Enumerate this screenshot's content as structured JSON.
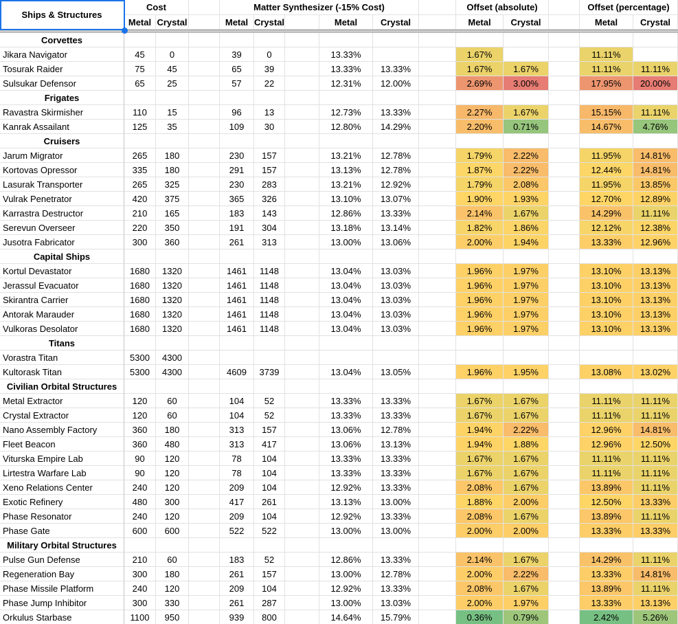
{
  "sheet": {
    "corner_header": "Ships & Structures",
    "groups": [
      {
        "label": "Cost",
        "sub": [
          "Metal",
          "Crystal"
        ]
      },
      {
        "label": "Matter Synthesizer (-15% Cost)",
        "sub": [
          "Metal",
          "Crystal",
          "Metal",
          "Crystal"
        ]
      },
      {
        "label": "Offset (absolute)",
        "sub": [
          "Metal",
          "Crystal"
        ]
      },
      {
        "label": "Offset (percentage)",
        "sub": [
          "Metal",
          "Crystal"
        ]
      }
    ],
    "row_format": [
      "name",
      "cost_metal",
      "cost_crystal",
      "synth_metal",
      "synth_crystal",
      "synth_metal_pct",
      "synth_crystal_pct",
      "offset_abs_metal",
      "offset_abs_crystal",
      "offset_pct_metal",
      "offset_pct_crystal"
    ],
    "sections": [
      {
        "category": "Corvettes",
        "rows": [
          [
            "Jikara Navigator",
            "45",
            "0",
            "39",
            "0",
            "13.33%",
            "",
            "1.67%",
            "",
            "11.11%",
            ""
          ],
          [
            "Tosurak Raider",
            "75",
            "45",
            "65",
            "39",
            "13.33%",
            "13.33%",
            "1.67%",
            "1.67%",
            "11.11%",
            "11.11%"
          ],
          [
            "Sulsukar Defensor",
            "65",
            "25",
            "57",
            "22",
            "12.31%",
            "12.00%",
            "2.69%",
            "3.00%",
            "17.95%",
            "20.00%"
          ]
        ]
      },
      {
        "category": "Frigates",
        "rows": [
          [
            "Ravastra Skirmisher",
            "110",
            "15",
            "96",
            "13",
            "12.73%",
            "13.33%",
            "2.27%",
            "1.67%",
            "15.15%",
            "11.11%"
          ],
          [
            "Kanrak Assailant",
            "125",
            "35",
            "109",
            "30",
            "12.80%",
            "14.29%",
            "2.20%",
            "0.71%",
            "14.67%",
            "4.76%"
          ]
        ]
      },
      {
        "category": "Cruisers",
        "rows": [
          [
            "Jarum Migrator",
            "265",
            "180",
            "230",
            "157",
            "13.21%",
            "12.78%",
            "1.79%",
            "2.22%",
            "11.95%",
            "14.81%"
          ],
          [
            "Kortovas Opressor",
            "335",
            "180",
            "291",
            "157",
            "13.13%",
            "12.78%",
            "1.87%",
            "2.22%",
            "12.44%",
            "14.81%"
          ],
          [
            "Lasurak Transporter",
            "265",
            "325",
            "230",
            "283",
            "13.21%",
            "12.92%",
            "1.79%",
            "2.08%",
            "11.95%",
            "13.85%"
          ],
          [
            "Vulrak Penetrator",
            "420",
            "375",
            "365",
            "326",
            "13.10%",
            "13.07%",
            "1.90%",
            "1.93%",
            "12.70%",
            "12.89%"
          ],
          [
            "Karrastra Destructor",
            "210",
            "165",
            "183",
            "143",
            "12.86%",
            "13.33%",
            "2.14%",
            "1.67%",
            "14.29%",
            "11.11%"
          ],
          [
            "Serevun Overseer",
            "220",
            "350",
            "191",
            "304",
            "13.18%",
            "13.14%",
            "1.82%",
            "1.86%",
            "12.12%",
            "12.38%"
          ],
          [
            "Jusotra Fabricator",
            "300",
            "360",
            "261",
            "313",
            "13.00%",
            "13.06%",
            "2.00%",
            "1.94%",
            "13.33%",
            "12.96%"
          ]
        ]
      },
      {
        "category": "Capital Ships",
        "rows": [
          [
            "Kortul Devastator",
            "1680",
            "1320",
            "1461",
            "1148",
            "13.04%",
            "13.03%",
            "1.96%",
            "1.97%",
            "13.10%",
            "13.13%"
          ],
          [
            "Jerassul Evacuator",
            "1680",
            "1320",
            "1461",
            "1148",
            "13.04%",
            "13.03%",
            "1.96%",
            "1.97%",
            "13.10%",
            "13.13%"
          ],
          [
            "Skirantra Carrier",
            "1680",
            "1320",
            "1461",
            "1148",
            "13.04%",
            "13.03%",
            "1.96%",
            "1.97%",
            "13.10%",
            "13.13%"
          ],
          [
            "Antorak Marauder",
            "1680",
            "1320",
            "1461",
            "1148",
            "13.04%",
            "13.03%",
            "1.96%",
            "1.97%",
            "13.10%",
            "13.13%"
          ],
          [
            "Vulkoras Desolator",
            "1680",
            "1320",
            "1461",
            "1148",
            "13.04%",
            "13.03%",
            "1.96%",
            "1.97%",
            "13.10%",
            "13.13%"
          ]
        ]
      },
      {
        "category": "Titans",
        "rows": [
          [
            "Vorastra Titan",
            "5300",
            "4300",
            "",
            "",
            "",
            "",
            "",
            "",
            "",
            ""
          ],
          [
            "Kultorask Titan",
            "5300",
            "4300",
            "4609",
            "3739",
            "13.04%",
            "13.05%",
            "1.96%",
            "1.95%",
            "13.08%",
            "13.02%"
          ]
        ]
      },
      {
        "category": "Civilian Orbital Structures",
        "rows": [
          [
            "Metal Extractor",
            "120",
            "60",
            "104",
            "52",
            "13.33%",
            "13.33%",
            "1.67%",
            "1.67%",
            "11.11%",
            "11.11%"
          ],
          [
            "Crystal Extractor",
            "120",
            "60",
            "104",
            "52",
            "13.33%",
            "13.33%",
            "1.67%",
            "1.67%",
            "11.11%",
            "11.11%"
          ],
          [
            "Nano Assembly Factory",
            "360",
            "180",
            "313",
            "157",
            "13.06%",
            "12.78%",
            "1.94%",
            "2.22%",
            "12.96%",
            "14.81%"
          ],
          [
            "Fleet Beacon",
            "360",
            "480",
            "313",
            "417",
            "13.06%",
            "13.13%",
            "1.94%",
            "1.88%",
            "12.96%",
            "12.50%"
          ],
          [
            "Viturska Empire Lab",
            "90",
            "120",
            "78",
            "104",
            "13.33%",
            "13.33%",
            "1.67%",
            "1.67%",
            "11.11%",
            "11.11%"
          ],
          [
            "Lirtestra Warfare Lab",
            "90",
            "120",
            "78",
            "104",
            "13.33%",
            "13.33%",
            "1.67%",
            "1.67%",
            "11.11%",
            "11.11%"
          ],
          [
            "Xeno Relations Center",
            "240",
            "120",
            "209",
            "104",
            "12.92%",
            "13.33%",
            "2.08%",
            "1.67%",
            "13.89%",
            "11.11%"
          ],
          [
            "Exotic Refinery",
            "480",
            "300",
            "417",
            "261",
            "13.13%",
            "13.00%",
            "1.88%",
            "2.00%",
            "12.50%",
            "13.33%"
          ],
          [
            "Phase Resonator",
            "240",
            "120",
            "209",
            "104",
            "12.92%",
            "13.33%",
            "2.08%",
            "1.67%",
            "13.89%",
            "11.11%"
          ],
          [
            "Phase Gate",
            "600",
            "600",
            "522",
            "522",
            "13.00%",
            "13.00%",
            "2.00%",
            "2.00%",
            "13.33%",
            "13.33%"
          ]
        ]
      },
      {
        "category": "Military Orbital Structures",
        "rows": [
          [
            "Pulse Gun Defense",
            "210",
            "60",
            "183",
            "52",
            "12.86%",
            "13.33%",
            "2.14%",
            "1.67%",
            "14.29%",
            "11.11%"
          ],
          [
            "Regeneration Bay",
            "300",
            "180",
            "261",
            "157",
            "13.00%",
            "12.78%",
            "2.00%",
            "2.22%",
            "13.33%",
            "14.81%"
          ],
          [
            "Phase Missile Platform",
            "240",
            "120",
            "209",
            "104",
            "12.92%",
            "13.33%",
            "2.08%",
            "1.67%",
            "13.89%",
            "11.11%"
          ],
          [
            "Phase Jump Inhibitor",
            "300",
            "330",
            "261",
            "287",
            "13.00%",
            "13.03%",
            "2.00%",
            "1.97%",
            "13.33%",
            "13.13%"
          ],
          [
            "Orkulus Starbase",
            "1100",
            "950",
            "939",
            "800",
            "14.64%",
            "15.79%",
            "0.36%",
            "0.79%",
            "2.42%",
            "5.26%"
          ]
        ]
      }
    ],
    "color_scale": {
      "green": "#57BB8A",
      "yellow": "#FFD666",
      "red": "#E67C73",
      "absolute": {
        "min": 0,
        "mid": 1.9,
        "max": 3.0
      },
      "percentage": {
        "min": 0,
        "mid": 12.67,
        "max": 20.0
      }
    },
    "selection_color": "#1a73e8",
    "gridline_color": "#e1e1e1"
  }
}
